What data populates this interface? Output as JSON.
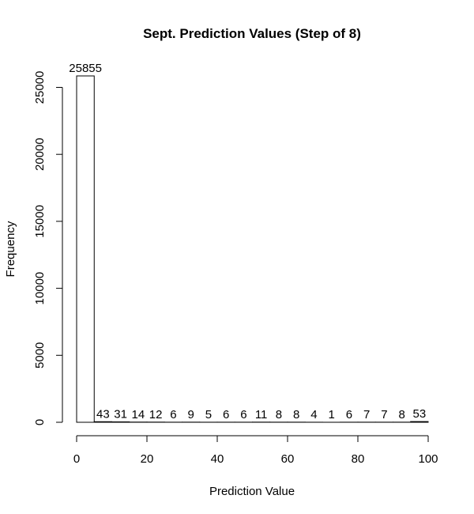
{
  "chart_data": {
    "type": "bar",
    "title": "Sept. Prediction Values (Step of 8)",
    "xlabel": "Prediction Value",
    "ylabel": "Frequency",
    "bin_width": 5,
    "bins": [
      [
        0,
        5
      ],
      [
        5,
        10
      ],
      [
        10,
        15
      ],
      [
        15,
        20
      ],
      [
        20,
        25
      ],
      [
        25,
        30
      ],
      [
        30,
        35
      ],
      [
        35,
        40
      ],
      [
        40,
        45
      ],
      [
        45,
        50
      ],
      [
        50,
        55
      ],
      [
        55,
        60
      ],
      [
        60,
        65
      ],
      [
        65,
        70
      ],
      [
        70,
        75
      ],
      [
        75,
        80
      ],
      [
        80,
        85
      ],
      [
        85,
        90
      ],
      [
        90,
        95
      ],
      [
        95,
        100
      ]
    ],
    "values": [
      25855,
      43,
      31,
      14,
      12,
      6,
      9,
      5,
      6,
      6,
      11,
      8,
      8,
      4,
      1,
      6,
      7,
      7,
      8,
      53
    ],
    "xlim": [
      0,
      100
    ],
    "ylim": [
      0,
      25855
    ],
    "xticks": [
      0,
      20,
      40,
      60,
      80,
      100
    ],
    "yticks": [
      0,
      5000,
      10000,
      15000,
      20000,
      25000
    ],
    "grid": false,
    "legend": "none",
    "bar_fill": "#ffffff",
    "bar_stroke": "#000000"
  }
}
